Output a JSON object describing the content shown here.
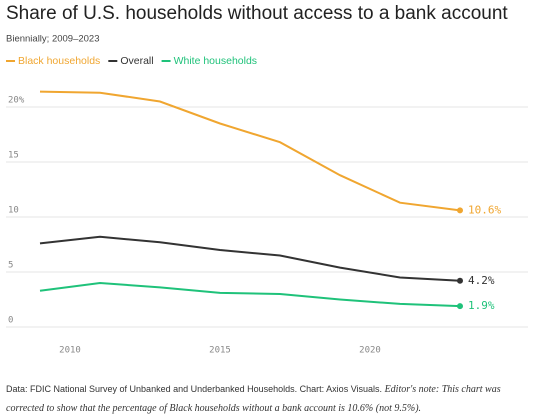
{
  "chart_data": {
    "type": "line",
    "title": "Share of U.S. households without access to a bank account",
    "subtitle": "Biennially; 2009–2023",
    "x": [
      2009,
      2011,
      2013,
      2015,
      2017,
      2019,
      2021,
      2023
    ],
    "xlim": [
      2009,
      2023
    ],
    "xticks": [
      2010,
      2015,
      2020
    ],
    "ylim": [
      0,
      22
    ],
    "yticks": [
      0,
      5,
      10,
      15,
      {
        "value": 20,
        "label": "20%"
      }
    ],
    "grid": true,
    "series": [
      {
        "name": "Black households",
        "color": "#f0a630",
        "values": [
          21.4,
          21.3,
          20.5,
          18.5,
          16.8,
          13.8,
          11.3,
          10.6
        ],
        "value_labels": [
          null,
          null,
          null,
          null,
          null,
          null,
          null,
          "10.6%"
        ]
      },
      {
        "name": "Overall",
        "color": "#333333",
        "values": [
          7.6,
          8.2,
          7.7,
          7.0,
          6.5,
          5.4,
          4.5,
          4.2
        ],
        "value_labels": [
          null,
          null,
          null,
          null,
          null,
          null,
          null,
          "4.2%"
        ]
      },
      {
        "name": "White households",
        "color": "#1fc27a",
        "values": [
          3.3,
          4.0,
          3.6,
          3.1,
          3.0,
          2.5,
          2.1,
          1.9
        ],
        "value_labels": [
          null,
          null,
          null,
          null,
          null,
          null,
          null,
          "1.9%"
        ]
      }
    ],
    "source": "Data: FDIC National Survey of Unbanked and Underbanked Households. Chart: Axios Visuals.",
    "note": "Editor's note: This chart was corrected to show that the percentage of Black households without a bank account is 10.6% (not 9.5%)."
  }
}
